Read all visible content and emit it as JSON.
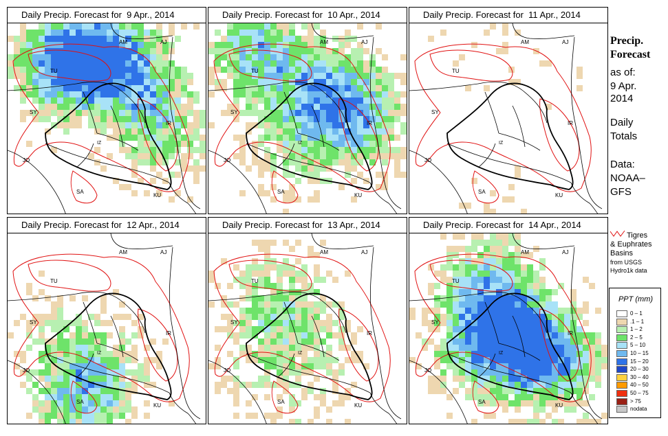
{
  "panels": [
    {
      "title": "Daily Precip. Forecast for  9 Apr., 2014",
      "intensity": 1.0,
      "focus": "north"
    },
    {
      "title": "Daily Precip. Forecast for  10 Apr., 2014",
      "intensity": 1.0,
      "focus": "north-east"
    },
    {
      "title": "Daily Precip. Forecast for  11 Apr., 2014",
      "intensity": 0.25,
      "focus": "sparse"
    },
    {
      "title": "Daily Precip. Forecast for  12 Apr., 2014",
      "intensity": 0.7,
      "focus": "south-west"
    },
    {
      "title": "Daily Precip. Forecast for  13 Apr., 2014",
      "intensity": 0.6,
      "focus": "central"
    },
    {
      "title": "Daily Precip. Forecast for  14 Apr., 2014",
      "intensity": 1.0,
      "focus": "east"
    }
  ],
  "map_labels": {
    "am": "AM",
    "aj": "AJ",
    "tu": "TU",
    "sy": "SY",
    "ir": "IR",
    "jo": "JO",
    "sa": "SA",
    "ku": "KU",
    "iz": "IZ"
  },
  "side": {
    "title_line1": "Precip.",
    "title_line2": "Forecast",
    "asof_label": "as of:",
    "date_line1": "9 Apr.",
    "date_line2": "2014",
    "daily_line1": "Daily",
    "daily_line2": "Totals",
    "data_line1": "Data:",
    "data_line2": "NOAA–",
    "data_line3": "GFS"
  },
  "basin_note": {
    "line1": "Tigres",
    "line2": "& Euphrates",
    "line3": "Basins",
    "line4": "from USGS",
    "line5": "Hydro1k data"
  },
  "legend": {
    "title": "PPT (mm)",
    "items": [
      {
        "label": "0 – 1",
        "color": "#ffffff"
      },
      {
        "label": ".1 – 1",
        "color": "#eed7b0"
      },
      {
        "label": "1 – 2",
        "color": "#b7f0b1"
      },
      {
        "label": "2 – 5",
        "color": "#6ee36a"
      },
      {
        "label": "5 – 10",
        "color": "#a8e2f7"
      },
      {
        "label": "10 – 15",
        "color": "#6fb9ef"
      },
      {
        "label": "15 – 20",
        "color": "#2f73e8"
      },
      {
        "label": "20 – 30",
        "color": "#1f47c8"
      },
      {
        "label": "30 – 40",
        "color": "#ffd23f"
      },
      {
        "label": "40 – 50",
        "color": "#ff9a00"
      },
      {
        "label": "50 – 75",
        "color": "#ef3010"
      },
      {
        "label": "> 75",
        "color": "#9a2015"
      },
      {
        "label": "nodata",
        "color": "#c8c8c8"
      }
    ]
  },
  "colors": {
    "basin_outline": "#e01010",
    "border": "#000000"
  }
}
